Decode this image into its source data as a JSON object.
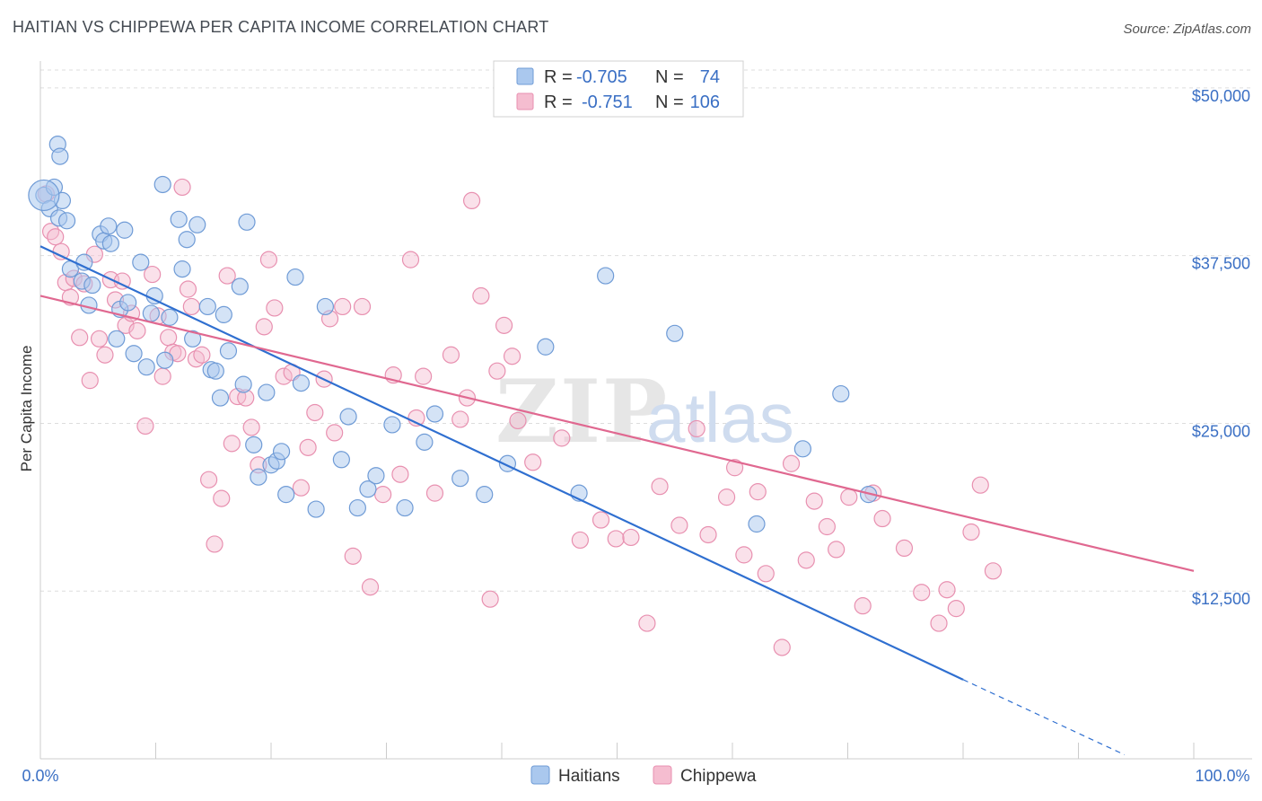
{
  "header": {
    "title": "HAITIAN VS CHIPPEWA PER CAPITA INCOME CORRELATION CHART",
    "source": "Source: ZipAtlas.com"
  },
  "watermark": {
    "zip": "ZIP",
    "atlas": "atlas"
  },
  "colors": {
    "blue_fill": "#aac8ee",
    "blue_stroke": "#6f9bd6",
    "blue_line": "#2f6fd0",
    "pink_fill": "#f5bdd0",
    "pink_stroke": "#e890b0",
    "pink_line": "#e06890",
    "grid": "#dddddd",
    "tick_label": "#3a6fc4"
  },
  "legend": {
    "rows": [
      {
        "series": "Haitians",
        "r_label": "R =",
        "r_value": "-0.705",
        "n_label": "N =",
        "n_value": "74"
      },
      {
        "series": "Chippewa",
        "r_label": "R =",
        "r_value": "-0.751",
        "n_label": "N =",
        "n_value": "106"
      }
    ]
  },
  "chart_data": {
    "type": "scatter",
    "title": "HAITIAN VS CHIPPEWA PER CAPITA INCOME CORRELATION CHART",
    "xlabel": "",
    "ylabel": "Per Capita Income",
    "xlim": [
      0,
      100
    ],
    "ylim": [
      0,
      52000
    ],
    "x_tick_labels": [
      "0.0%",
      "100.0%"
    ],
    "y_ticks": [
      12500,
      25000,
      37500,
      50000
    ],
    "y_tick_labels": [
      "$12,500",
      "$25,000",
      "$37,500",
      "$50,000"
    ],
    "grid": true,
    "legend_position": "bottom-center",
    "series": [
      {
        "name": "Haitians",
        "color": "#aac8ee",
        "trend": {
          "x": [
            0,
            80
          ],
          "y": [
            38200,
            5900
          ],
          "dashed_extension_to": [
            94,
            300
          ]
        },
        "points": [
          [
            0.3,
            42000
          ],
          [
            0.8,
            41000
          ],
          [
            1.2,
            42600
          ],
          [
            1.5,
            45800
          ],
          [
            1.6,
            40300
          ],
          [
            1.7,
            44900
          ],
          [
            1.9,
            41600
          ],
          [
            2.3,
            40100
          ],
          [
            2.6,
            36500
          ],
          [
            3.6,
            35600
          ],
          [
            3.8,
            37000
          ],
          [
            4.2,
            33800
          ],
          [
            4.5,
            35300
          ],
          [
            5.2,
            39100
          ],
          [
            5.5,
            38600
          ],
          [
            5.9,
            39700
          ],
          [
            6.1,
            38400
          ],
          [
            6.6,
            31300
          ],
          [
            6.9,
            33500
          ],
          [
            7.3,
            39400
          ],
          [
            7.6,
            34000
          ],
          [
            8.1,
            30200
          ],
          [
            8.7,
            37000
          ],
          [
            9.2,
            29200
          ],
          [
            9.6,
            33200
          ],
          [
            9.9,
            34500
          ],
          [
            10.6,
            42800
          ],
          [
            10.8,
            29700
          ],
          [
            11.2,
            32900
          ],
          [
            12.0,
            40200
          ],
          [
            12.3,
            36500
          ],
          [
            12.7,
            38700
          ],
          [
            13.2,
            31300
          ],
          [
            13.6,
            39800
          ],
          [
            14.5,
            33700
          ],
          [
            14.8,
            29000
          ],
          [
            15.2,
            28900
          ],
          [
            15.6,
            26900
          ],
          [
            15.9,
            33100
          ],
          [
            16.3,
            30400
          ],
          [
            17.3,
            35200
          ],
          [
            17.6,
            27900
          ],
          [
            17.9,
            40000
          ],
          [
            18.5,
            23400
          ],
          [
            18.9,
            21000
          ],
          [
            19.6,
            27300
          ],
          [
            20.0,
            21900
          ],
          [
            20.5,
            22200
          ],
          [
            20.9,
            22900
          ],
          [
            21.3,
            19700
          ],
          [
            22.1,
            35900
          ],
          [
            22.6,
            28000
          ],
          [
            23.9,
            18600
          ],
          [
            24.7,
            33700
          ],
          [
            26.1,
            22300
          ],
          [
            26.7,
            25500
          ],
          [
            27.5,
            18700
          ],
          [
            28.4,
            20100
          ],
          [
            29.1,
            21100
          ],
          [
            30.5,
            24900
          ],
          [
            31.6,
            18700
          ],
          [
            33.3,
            23600
          ],
          [
            34.2,
            25700
          ],
          [
            36.4,
            20900
          ],
          [
            38.5,
            19700
          ],
          [
            40.5,
            22000
          ],
          [
            43.8,
            30700
          ],
          [
            46.7,
            19800
          ],
          [
            49.0,
            36000
          ],
          [
            55.0,
            31700
          ],
          [
            62.1,
            17500
          ],
          [
            66.1,
            23100
          ],
          [
            69.4,
            27200
          ],
          [
            71.8,
            19700
          ]
        ]
      },
      {
        "name": "Chippewa",
        "color": "#f5bdd0",
        "trend": {
          "x": [
            0,
            100
          ],
          "y": [
            34500,
            14000
          ]
        },
        "points": [
          [
            0.5,
            42100
          ],
          [
            0.9,
            39300
          ],
          [
            1.3,
            38900
          ],
          [
            1.8,
            37800
          ],
          [
            2.2,
            35500
          ],
          [
            2.6,
            34400
          ],
          [
            2.9,
            35800
          ],
          [
            3.4,
            31400
          ],
          [
            3.8,
            35400
          ],
          [
            4.3,
            28200
          ],
          [
            4.7,
            37600
          ],
          [
            5.1,
            31300
          ],
          [
            5.6,
            30100
          ],
          [
            6.1,
            35700
          ],
          [
            6.5,
            34200
          ],
          [
            7.1,
            35600
          ],
          [
            7.4,
            32300
          ],
          [
            7.9,
            33200
          ],
          [
            8.4,
            31900
          ],
          [
            9.1,
            24800
          ],
          [
            9.7,
            36100
          ],
          [
            10.2,
            33000
          ],
          [
            10.6,
            28500
          ],
          [
            11.1,
            31400
          ],
          [
            11.5,
            30300
          ],
          [
            11.9,
            30200
          ],
          [
            12.3,
            42600
          ],
          [
            12.8,
            35000
          ],
          [
            13.1,
            33700
          ],
          [
            13.5,
            29800
          ],
          [
            14.0,
            30100
          ],
          [
            14.6,
            20800
          ],
          [
            15.1,
            16000
          ],
          [
            15.7,
            19400
          ],
          [
            16.2,
            36000
          ],
          [
            16.6,
            23500
          ],
          [
            17.1,
            27000
          ],
          [
            17.8,
            26900
          ],
          [
            18.3,
            24700
          ],
          [
            18.9,
            21900
          ],
          [
            19.4,
            32200
          ],
          [
            19.8,
            37200
          ],
          [
            20.3,
            33600
          ],
          [
            21.1,
            28500
          ],
          [
            21.8,
            28800
          ],
          [
            22.6,
            20200
          ],
          [
            23.2,
            23200
          ],
          [
            23.8,
            25800
          ],
          [
            24.6,
            28300
          ],
          [
            25.1,
            32800
          ],
          [
            25.5,
            24300
          ],
          [
            26.2,
            33700
          ],
          [
            27.1,
            15100
          ],
          [
            27.9,
            33700
          ],
          [
            28.6,
            12800
          ],
          [
            29.7,
            19700
          ],
          [
            30.6,
            28600
          ],
          [
            31.2,
            21200
          ],
          [
            32.1,
            37200
          ],
          [
            32.6,
            25400
          ],
          [
            33.2,
            28500
          ],
          [
            34.2,
            19800
          ],
          [
            35.6,
            30100
          ],
          [
            36.4,
            25300
          ],
          [
            37.0,
            26900
          ],
          [
            37.4,
            41600
          ],
          [
            38.2,
            34500
          ],
          [
            39.0,
            11900
          ],
          [
            39.6,
            28900
          ],
          [
            40.2,
            32300
          ],
          [
            40.9,
            30000
          ],
          [
            41.4,
            25200
          ],
          [
            42.7,
            22100
          ],
          [
            45.2,
            23900
          ],
          [
            46.8,
            16300
          ],
          [
            48.6,
            17800
          ],
          [
            49.9,
            16400
          ],
          [
            51.2,
            16500
          ],
          [
            52.6,
            10100
          ],
          [
            53.7,
            20300
          ],
          [
            55.4,
            17400
          ],
          [
            56.9,
            24600
          ],
          [
            57.9,
            16700
          ],
          [
            59.5,
            19500
          ],
          [
            60.2,
            21700
          ],
          [
            61.0,
            15200
          ],
          [
            62.2,
            19900
          ],
          [
            62.9,
            13800
          ],
          [
            64.3,
            8300
          ],
          [
            65.1,
            22000
          ],
          [
            66.4,
            14800
          ],
          [
            67.1,
            19200
          ],
          [
            68.2,
            17300
          ],
          [
            69.0,
            15600
          ],
          [
            70.1,
            19500
          ],
          [
            71.3,
            11400
          ],
          [
            72.2,
            19800
          ],
          [
            73.0,
            17900
          ],
          [
            74.9,
            15700
          ],
          [
            76.4,
            12400
          ],
          [
            77.9,
            10100
          ],
          [
            78.6,
            12600
          ],
          [
            79.4,
            11200
          ],
          [
            80.7,
            16900
          ],
          [
            81.5,
            20400
          ],
          [
            82.6,
            14000
          ]
        ]
      }
    ]
  },
  "bottom_legend": [
    {
      "label": "Haitians"
    },
    {
      "label": "Chippewa"
    }
  ]
}
